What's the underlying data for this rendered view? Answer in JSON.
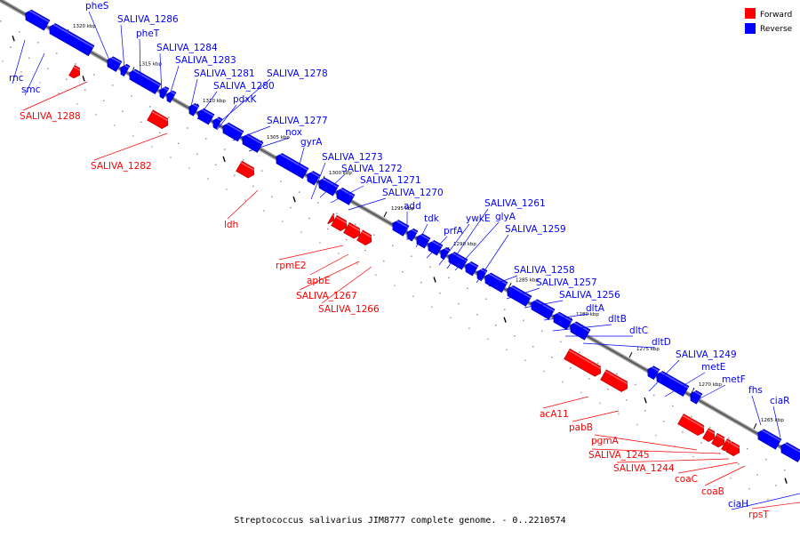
{
  "caption": "Streptococcus salivarius JIM8777 complete genome. - 0..2210574",
  "legend": [
    {
      "label": "Forward",
      "color": "#ff0000"
    },
    {
      "label": "Reverse",
      "color": "#0000ff"
    }
  ],
  "colors": {
    "forward": "#ff0000",
    "reverse": "#0000ff",
    "axis": "#666666"
  },
  "scale_ticks": [
    "1320 kbp",
    "1315 kbp",
    "1310 kbp",
    "1305 kbp",
    "1300 kbp",
    "1295 kbp",
    "1290 kbp",
    "1285 kbp",
    "1280 kbp",
    "1275 kbp",
    "1270 kbp",
    "1265 kbp"
  ],
  "genes": [
    {
      "name": "rnc",
      "strand": "reverse"
    },
    {
      "name": "smc",
      "strand": "reverse"
    },
    {
      "name": "SALIVA_1288",
      "strand": "forward"
    },
    {
      "name": "pheS",
      "strand": "reverse"
    },
    {
      "name": "SALIVA_1286",
      "strand": "reverse"
    },
    {
      "name": "pheT",
      "strand": "reverse"
    },
    {
      "name": "SALIVA_1284",
      "strand": "reverse"
    },
    {
      "name": "SALIVA_1283",
      "strand": "reverse"
    },
    {
      "name": "SALIVA_1282",
      "strand": "forward"
    },
    {
      "name": "SALIVA_1281",
      "strand": "reverse"
    },
    {
      "name": "SALIVA_1280",
      "strand": "reverse"
    },
    {
      "name": "SALIVA_1278",
      "strand": "reverse"
    },
    {
      "name": "pdxK",
      "strand": "reverse"
    },
    {
      "name": "SALIVA_1277",
      "strand": "reverse"
    },
    {
      "name": "nox",
      "strand": "reverse"
    },
    {
      "name": "gyrA",
      "strand": "reverse"
    },
    {
      "name": "ldh",
      "strand": "forward"
    },
    {
      "name": "SALIVA_1273",
      "strand": "reverse"
    },
    {
      "name": "SALIVA_1272",
      "strand": "reverse"
    },
    {
      "name": "SALIVA_1271",
      "strand": "reverse"
    },
    {
      "name": "SALIVA_1270",
      "strand": "reverse"
    },
    {
      "name": "add",
      "strand": "reverse"
    },
    {
      "name": "rpmE2",
      "strand": "forward"
    },
    {
      "name": "apbE",
      "strand": "forward"
    },
    {
      "name": "SALIVA_1267",
      "strand": "forward"
    },
    {
      "name": "SALIVA_1266",
      "strand": "forward"
    },
    {
      "name": "tdk",
      "strand": "reverse"
    },
    {
      "name": "prfA",
      "strand": "reverse"
    },
    {
      "name": "ywkE",
      "strand": "reverse"
    },
    {
      "name": "SALIVA_1261",
      "strand": "reverse"
    },
    {
      "name": "glyA",
      "strand": "reverse"
    },
    {
      "name": "SALIVA_1259",
      "strand": "reverse"
    },
    {
      "name": "SALIVA_1258",
      "strand": "reverse"
    },
    {
      "name": "SALIVA_1257",
      "strand": "reverse"
    },
    {
      "name": "SALIVA_1256",
      "strand": "reverse"
    },
    {
      "name": "dltA",
      "strand": "reverse"
    },
    {
      "name": "dltB",
      "strand": "reverse"
    },
    {
      "name": "dltC",
      "strand": "reverse"
    },
    {
      "name": "dltD",
      "strand": "reverse"
    },
    {
      "name": "SALIVA_1249",
      "strand": "reverse"
    },
    {
      "name": "metE",
      "strand": "reverse"
    },
    {
      "name": "metF",
      "strand": "reverse"
    },
    {
      "name": "acA11",
      "strand": "forward"
    },
    {
      "name": "pabB",
      "strand": "forward"
    },
    {
      "name": "fhs",
      "strand": "reverse"
    },
    {
      "name": "ciaR",
      "strand": "reverse"
    },
    {
      "name": "pgmA",
      "strand": "forward"
    },
    {
      "name": "SALIVA_1245",
      "strand": "forward"
    },
    {
      "name": "SALIVA_1244",
      "strand": "forward"
    },
    {
      "name": "coaC",
      "strand": "forward"
    },
    {
      "name": "coaB",
      "strand": "forward"
    },
    {
      "name": "ciaH",
      "strand": "reverse"
    },
    {
      "name": "rpsT",
      "strand": "forward"
    }
  ]
}
